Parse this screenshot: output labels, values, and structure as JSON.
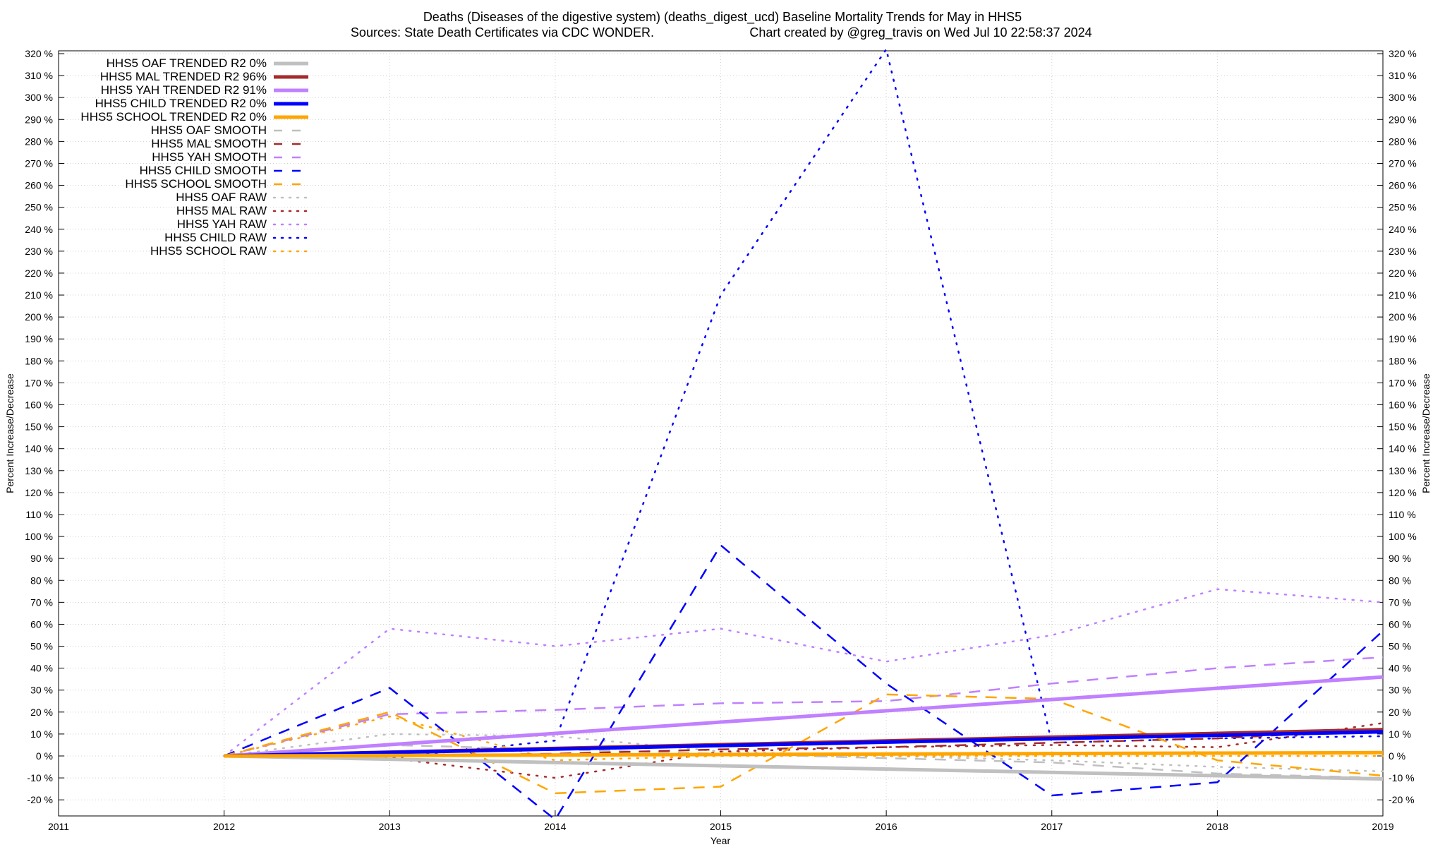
{
  "header": {
    "title_line1": "Deaths (Diseases of the digestive system) (deaths_digest_ucd)  Baseline Mortality Trends for May in HHS5",
    "title_line2_left": "Sources: State Death Certificates via CDC WONDER.",
    "title_line2_right": "Chart created by @greg_travis on Wed Jul 10 22:58:37 2024"
  },
  "chart_data": {
    "type": "line",
    "title": "Deaths (Diseases of the digestive system) (deaths_digest_ucd)  Baseline Mortality Trends for May in HHS5",
    "xlabel": "Year",
    "ylabel": "Percent Increase/Decrease",
    "xlim": [
      2011,
      2019
    ],
    "ylim": [
      -28,
      320
    ],
    "x_ticks": [
      2011,
      2012,
      2013,
      2014,
      2015,
      2016,
      2017,
      2018,
      2019
    ],
    "y_ticks": [
      -20,
      -10,
      0,
      10,
      20,
      30,
      40,
      50,
      60,
      70,
      80,
      90,
      100,
      110,
      120,
      130,
      140,
      150,
      160,
      170,
      180,
      190,
      200,
      210,
      220,
      230,
      240,
      250,
      260,
      270,
      280,
      290,
      300,
      310,
      320
    ],
    "y_tick_suffix": " %",
    "grid": true,
    "legend_position": "top-left",
    "series": [
      {
        "name": "HHS5 OAF TRENDED R2  0%",
        "style": "solid",
        "color": "#c0c0c0",
        "x": [
          2012,
          2019
        ],
        "y": [
          0,
          -10.5
        ]
      },
      {
        "name": "HHS5 MAL TRENDED R2  96%",
        "style": "solid",
        "color": "#a52a2a",
        "x": [
          2012,
          2019
        ],
        "y": [
          0,
          12
        ]
      },
      {
        "name": "HHS5 YAH TRENDED R2  91%",
        "style": "solid",
        "color": "#c080ff",
        "x": [
          2012,
          2019
        ],
        "y": [
          0,
          36
        ]
      },
      {
        "name": "HHS5 CHILD TRENDED R2  0%",
        "style": "solid",
        "color": "#0000ff",
        "x": [
          2012,
          2019
        ],
        "y": [
          0,
          11
        ]
      },
      {
        "name": "HHS5 SCHOOL TRENDED R2  0%",
        "style": "solid",
        "color": "#ffa500",
        "x": [
          2012,
          2019
        ],
        "y": [
          0,
          1.5
        ]
      },
      {
        "name": "HHS5 OAF SMOOTH",
        "style": "dashed",
        "color": "#c0c0c0",
        "x": [
          2012,
          2013,
          2014,
          2015,
          2016,
          2017,
          2018,
          2019
        ],
        "y": [
          0,
          5,
          3,
          1,
          -1,
          -3,
          -8,
          -10
        ]
      },
      {
        "name": "HHS5 MAL SMOOTH",
        "style": "dashed",
        "color": "#a52a2a",
        "x": [
          2012,
          2013,
          2014,
          2015,
          2016,
          2017,
          2018,
          2019
        ],
        "y": [
          0,
          0,
          1,
          3,
          4,
          6,
          8,
          12
        ]
      },
      {
        "name": "HHS5 YAH SMOOTH",
        "style": "dashed",
        "color": "#c080ff",
        "x": [
          2012,
          2013,
          2014,
          2015,
          2016,
          2017,
          2018,
          2019
        ],
        "y": [
          0,
          19,
          21,
          24,
          25,
          33,
          40,
          45
        ]
      },
      {
        "name": "HHS5 CHILD SMOOTH",
        "style": "dashed",
        "color": "#0000ff",
        "x": [
          2012,
          2013,
          2014,
          2015,
          2016,
          2017,
          2018,
          2019
        ],
        "y": [
          0,
          31,
          -29,
          96,
          33,
          -18,
          -12,
          57
        ]
      },
      {
        "name": "HHS5 SCHOOL SMOOTH",
        "style": "dashed",
        "color": "#ffa500",
        "x": [
          2012,
          2013,
          2014,
          2015,
          2016,
          2017,
          2018,
          2019
        ],
        "y": [
          0,
          20,
          -17,
          -14,
          28,
          26,
          -2,
          -9
        ]
      },
      {
        "name": "HHS5 OAF RAW",
        "style": "dotted",
        "color": "#c0c0c0",
        "x": [
          2012,
          2013,
          2014,
          2015,
          2016,
          2017,
          2018,
          2019
        ],
        "y": [
          0,
          10,
          9,
          2,
          0,
          -2,
          -5,
          -7
        ]
      },
      {
        "name": "HHS5 MAL RAW",
        "style": "dotted",
        "color": "#a52a2a",
        "x": [
          2012,
          2013,
          2014,
          2015,
          2016,
          2017,
          2018,
          2019
        ],
        "y": [
          0,
          -1,
          -10,
          2,
          4,
          5,
          4,
          15
        ]
      },
      {
        "name": "HHS5 YAH RAW",
        "style": "dotted",
        "color": "#c080ff",
        "x": [
          2012,
          2013,
          2014,
          2015,
          2016,
          2017,
          2018,
          2019
        ],
        "y": [
          0,
          58,
          50,
          58,
          43,
          55,
          76,
          70
        ]
      },
      {
        "name": "HHS5 CHILD RAW",
        "style": "dotted",
        "color": "#0000ff",
        "x": [
          2012,
          2013,
          2014,
          2015,
          2016,
          2017,
          2018,
          2019
        ],
        "y": [
          0,
          -1,
          7,
          210,
          322,
          6,
          8,
          9
        ]
      },
      {
        "name": "HHS5 SCHOOL RAW",
        "style": "dotted",
        "color": "#ffa500",
        "x": [
          2012,
          2013,
          2014,
          2015,
          2016,
          2017,
          2018,
          2019
        ],
        "y": [
          0,
          18,
          -2,
          0,
          0,
          0,
          0,
          0
        ]
      }
    ]
  }
}
